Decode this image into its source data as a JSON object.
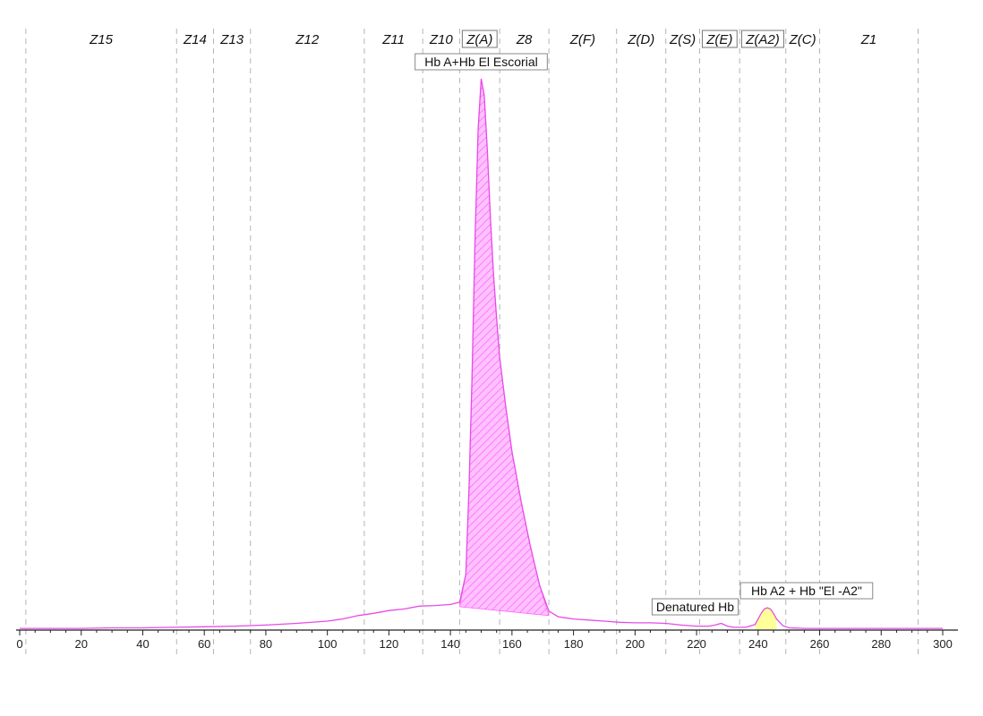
{
  "chart_data": {
    "type": "area",
    "xlim": [
      0,
      300
    ],
    "ylim": [
      0,
      1.0
    ],
    "x_ticks": [
      0,
      20,
      40,
      60,
      80,
      100,
      120,
      140,
      160,
      180,
      200,
      220,
      240,
      260,
      280,
      300
    ],
    "grid": false,
    "colors": {
      "trace": "#e64ce6",
      "peak_fill": "#ff66ff",
      "a2_fill": "#ffff99",
      "zone_line": "#b5b5b5",
      "axis": "#222222"
    },
    "zones": [
      {
        "label": "Z15",
        "start": 2,
        "end": 51,
        "boxed": false
      },
      {
        "label": "Z14",
        "start": 51,
        "end": 63,
        "boxed": false
      },
      {
        "label": "Z13",
        "start": 63,
        "end": 75,
        "boxed": false
      },
      {
        "label": "Z12",
        "start": 75,
        "end": 112,
        "boxed": false
      },
      {
        "label": "Z11",
        "start": 112,
        "end": 131,
        "boxed": false
      },
      {
        "label": "Z10",
        "start": 131,
        "end": 143,
        "boxed": false
      },
      {
        "label": "Z(A)",
        "start": 143,
        "end": 156,
        "boxed": true
      },
      {
        "label": "Z8",
        "start": 156,
        "end": 172,
        "boxed": false
      },
      {
        "label": "Z(F)",
        "start": 172,
        "end": 194,
        "boxed": false
      },
      {
        "label": "Z(D)",
        "start": 194,
        "end": 210,
        "boxed": false
      },
      {
        "label": "Z(S)",
        "start": 210,
        "end": 221,
        "boxed": false
      },
      {
        "label": "Z(E)",
        "start": 221,
        "end": 234,
        "boxed": true
      },
      {
        "label": "Z(A2)",
        "start": 234,
        "end": 249,
        "boxed": true
      },
      {
        "label": "Z(C)",
        "start": 249,
        "end": 260,
        "boxed": false
      },
      {
        "label": "Z1",
        "start": 260,
        "end": 292,
        "boxed": false
      }
    ],
    "zone_boundaries": [
      2,
      51,
      63,
      75,
      112,
      131,
      143,
      156,
      172,
      194,
      210,
      221,
      234,
      249,
      260,
      292
    ],
    "series": [
      {
        "x": [
          0,
          10,
          20,
          30,
          40,
          50,
          60,
          70,
          80,
          90,
          100,
          105,
          110,
          115,
          120,
          125,
          130,
          135,
          140,
          143,
          145,
          146,
          147,
          148,
          149,
          150,
          151,
          152,
          153,
          154,
          155,
          156,
          158,
          160,
          163,
          166,
          169,
          172,
          175,
          180,
          185,
          190,
          195,
          200,
          205,
          210,
          215,
          220,
          224,
          226,
          228,
          230,
          232,
          236,
          239,
          240,
          241,
          242,
          243,
          244,
          245,
          246,
          248,
          250,
          255,
          260,
          270,
          280,
          290,
          300
        ],
        "y": [
          0.003,
          0.003,
          0.003,
          0.004,
          0.004,
          0.005,
          0.006,
          0.007,
          0.009,
          0.012,
          0.016,
          0.02,
          0.026,
          0.03,
          0.035,
          0.038,
          0.043,
          0.044,
          0.046,
          0.05,
          0.1,
          0.25,
          0.45,
          0.7,
          0.9,
          0.99,
          0.96,
          0.86,
          0.74,
          0.64,
          0.56,
          0.49,
          0.4,
          0.32,
          0.23,
          0.15,
          0.08,
          0.034,
          0.024,
          0.02,
          0.018,
          0.016,
          0.014,
          0.013,
          0.013,
          0.012,
          0.009,
          0.007,
          0.007,
          0.009,
          0.012,
          0.007,
          0.005,
          0.005,
          0.01,
          0.02,
          0.03,
          0.038,
          0.04,
          0.038,
          0.03,
          0.02,
          0.008,
          0.004,
          0.003,
          0.003,
          0.003,
          0.003,
          0.003,
          0.003
        ]
      }
    ],
    "peak_baseline": [
      [
        143,
        0.042
      ],
      [
        172,
        0.026
      ]
    ],
    "a2_region": [
      239,
      246
    ],
    "annotations": [
      {
        "text": "Hb A+Hb El Escorial",
        "x": 150
      },
      {
        "text": "Denatured Hb",
        "x": 228
      },
      {
        "text": "Hb A2 + Hb \"El -A2\"",
        "x": 243
      }
    ]
  }
}
